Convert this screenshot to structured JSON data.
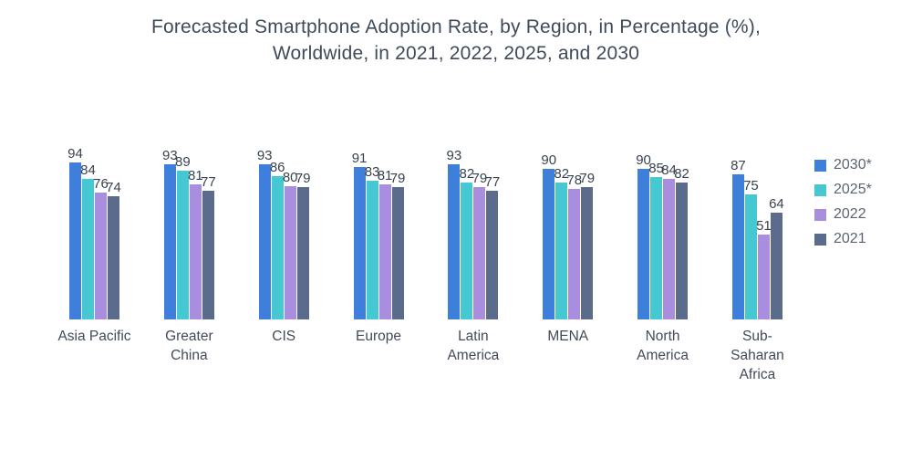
{
  "chart_data": {
    "type": "bar",
    "title": "Forecasted Smartphone Adoption Rate, by Region, in Percentage (%), Worldwide, in 2021, 2022, 2025, and 2030",
    "title_lines": [
      "Forecasted Smartphone Adoption Rate, by Region, in Percentage (%),",
      "Worldwide, in 2021, 2022, 2025, and 2030"
    ],
    "categories": [
      "Asia Pacific",
      "Greater China",
      "CIS",
      "Europe",
      "Latin America",
      "MENA",
      "North America",
      "Sub-Saharan Africa"
    ],
    "category_lines": [
      [
        "Asia Pacific"
      ],
      [
        "Greater",
        "China"
      ],
      [
        "CIS"
      ],
      [
        "Europe"
      ],
      [
        "Latin",
        "America"
      ],
      [
        "MENA"
      ],
      [
        "North",
        "America"
      ],
      [
        "Sub-",
        "Saharan",
        "Africa"
      ]
    ],
    "series": [
      {
        "name": "2030*",
        "color": "#3E7FDC",
        "values": [
          94,
          93,
          93,
          91,
          93,
          90,
          90,
          87
        ]
      },
      {
        "name": "2025*",
        "color": "#45C8D1",
        "values": [
          84,
          89,
          86,
          83,
          82,
          82,
          85,
          75
        ]
      },
      {
        "name": "2022",
        "color": "#A98EE0",
        "values": [
          76,
          81,
          80,
          81,
          79,
          78,
          84,
          51
        ]
      },
      {
        "name": "2021",
        "color": "#5A6B8C",
        "values": [
          74,
          77,
          79,
          79,
          77,
          79,
          82,
          64
        ]
      }
    ],
    "xlabel": "",
    "ylabel": "",
    "ylim": [
      0,
      100
    ],
    "grid": false,
    "axes_visible": false,
    "data_labels": true,
    "legend_position": "right",
    "text_color": "#3F4A5A",
    "background_color": "#FFFFFF"
  }
}
